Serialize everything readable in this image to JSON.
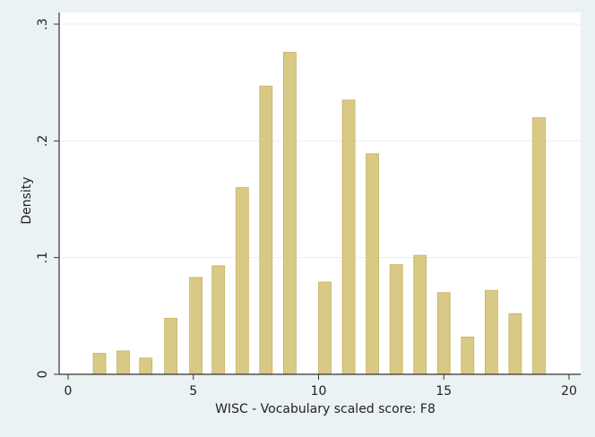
{
  "chart_data": {
    "type": "bar",
    "title": "",
    "xlabel": "WISC - Vocabulary scaled score: F8",
    "ylabel": "Density",
    "xlim": [
      0,
      20
    ],
    "ylim": [
      0,
      0.3
    ],
    "x_ticks": [
      {
        "value": 0,
        "label": "0"
      },
      {
        "value": 5,
        "label": "5"
      },
      {
        "value": 10,
        "label": "10"
      },
      {
        "value": 15,
        "label": "15"
      },
      {
        "value": 20,
        "label": "20"
      }
    ],
    "y_ticks": [
      {
        "value": 0,
        "label": "0"
      },
      {
        "value": 0.1,
        "label": ".1"
      },
      {
        "value": 0.2,
        "label": ".2"
      },
      {
        "value": 0.3,
        "label": ".3"
      }
    ],
    "grid": true,
    "bar_width": 0.5,
    "bars": [
      {
        "x": 1.25,
        "y": 0.018
      },
      {
        "x": 2.2,
        "y": 0.02
      },
      {
        "x": 3.1,
        "y": 0.014
      },
      {
        "x": 4.1,
        "y": 0.048
      },
      {
        "x": 5.1,
        "y": 0.083
      },
      {
        "x": 6.0,
        "y": 0.093
      },
      {
        "x": 6.95,
        "y": 0.16
      },
      {
        "x": 7.9,
        "y": 0.247
      },
      {
        "x": 8.85,
        "y": 0.276
      },
      {
        "x": 10.25,
        "y": 0.079
      },
      {
        "x": 11.2,
        "y": 0.235
      },
      {
        "x": 12.15,
        "y": 0.189
      },
      {
        "x": 13.1,
        "y": 0.094
      },
      {
        "x": 14.05,
        "y": 0.102
      },
      {
        "x": 15.0,
        "y": 0.07
      },
      {
        "x": 15.95,
        "y": 0.032
      },
      {
        "x": 16.9,
        "y": 0.072
      },
      {
        "x": 17.85,
        "y": 0.052
      },
      {
        "x": 18.8,
        "y": 0.22
      }
    ],
    "colors": {
      "bar_fill": "#d8c984",
      "bar_stroke": "#c6b46a",
      "plot_bg": "#ffffff",
      "outer_bg": "#eaf2f3",
      "grid": "#e8eeee",
      "axis": "#333333"
    }
  }
}
